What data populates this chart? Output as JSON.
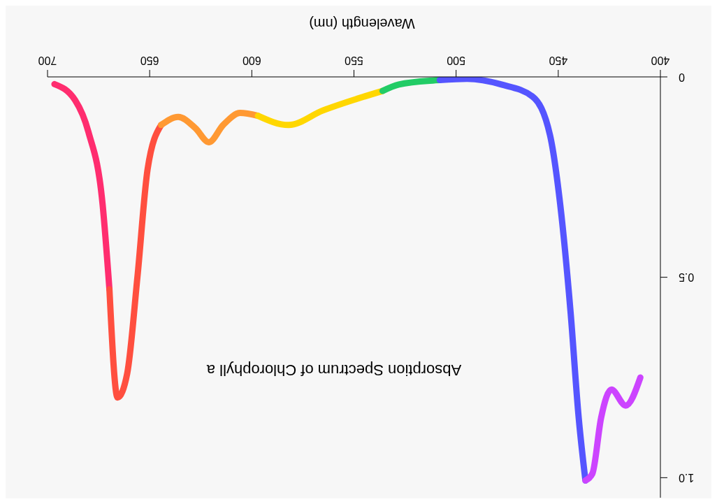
{
  "chart_data": {
    "type": "line",
    "title": "Absorption Spectrum of Chlorophyll a",
    "xlabel": "Wavelength (nm)",
    "xlim": [
      700,
      400
    ],
    "xticks": [
      400,
      450,
      500,
      550,
      600,
      650,
      700
    ],
    "ylim": [
      1.05,
      0
    ],
    "yticks": [
      0,
      0.5,
      {
        "value": 1,
        "label": "1.0"
      }
    ],
    "grid": false,
    "marker": "none",
    "line_style": "solid",
    "series": [
      {
        "color": "#ff2d6f",
        "x": [
          696.6,
          686.5,
          680,
          673,
          669.7
        ],
        "values": [
          0.018,
          0.058,
          0.137,
          0.32,
          0.53
        ]
      },
      {
        "color": "#ff4f3f",
        "x": [
          669.7,
          665.7,
          661,
          656,
          651,
          644.4
        ],
        "values": [
          0.53,
          0.8,
          0.74,
          0.5,
          0.23,
          0.12
        ]
      },
      {
        "color": "#ff9933",
        "x": [
          644.4,
          636,
          627.6,
          621,
          614,
          605.7,
          597
        ],
        "values": [
          0.12,
          0.1,
          0.128,
          0.163,
          0.12,
          0.09,
          0.097
        ]
      },
      {
        "color": "#ffd700",
        "x": [
          597,
          582,
          565.3,
          545,
          536
        ],
        "values": [
          0.097,
          0.12,
          0.084,
          0.049,
          0.035
        ]
      },
      {
        "color": "#22cc66",
        "x": [
          536,
          528,
          511.4,
          508
        ],
        "values": [
          0.035,
          0.019,
          0.009,
          0.008
        ]
      },
      {
        "color": "#5555ff",
        "x": [
          508,
          494.6,
          477.8,
          462.6,
          454,
          449,
          444,
          440,
          436.7
        ],
        "values": [
          0.008,
          0.005,
          0.019,
          0.049,
          0.146,
          0.32,
          0.585,
          0.85,
          1.007
        ]
      },
      {
        "color": "#cc44ff",
        "x": [
          436.7,
          433.3,
          429,
          424,
          417,
          409.8
        ],
        "values": [
          1.007,
          0.99,
          0.85,
          0.78,
          0.82,
          0.75
        ]
      }
    ]
  }
}
